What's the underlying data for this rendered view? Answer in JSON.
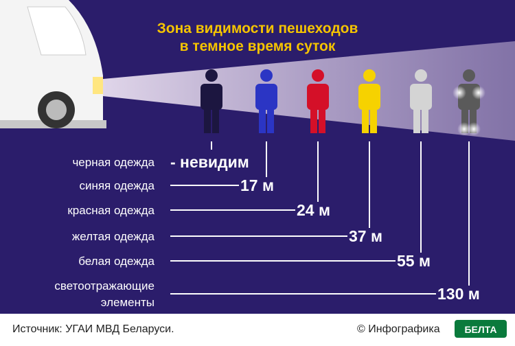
{
  "header": {
    "title_lines": [
      "Зона видимости пешеходов",
      "в темное время суток"
    ]
  },
  "rows": [
    {
      "label": [
        "черная одежда"
      ],
      "value": "- невидим"
    },
    {
      "label": [
        "синяя одежда"
      ],
      "value": "17 м"
    },
    {
      "label": [
        "красная одежда"
      ],
      "value": "24 м"
    },
    {
      "label": [
        "желтая одежда"
      ],
      "value": "37 м"
    },
    {
      "label": [
        "белая одежда"
      ],
      "value": "55 м"
    },
    {
      "label": [
        "светоотражающие",
        "элементы"
      ],
      "value": "130 м"
    }
  ],
  "footer": {
    "source": "Источник: УГАИ МВД Беларуси.",
    "credit": "© Инфографика",
    "logo": "БЕЛТА"
  }
}
